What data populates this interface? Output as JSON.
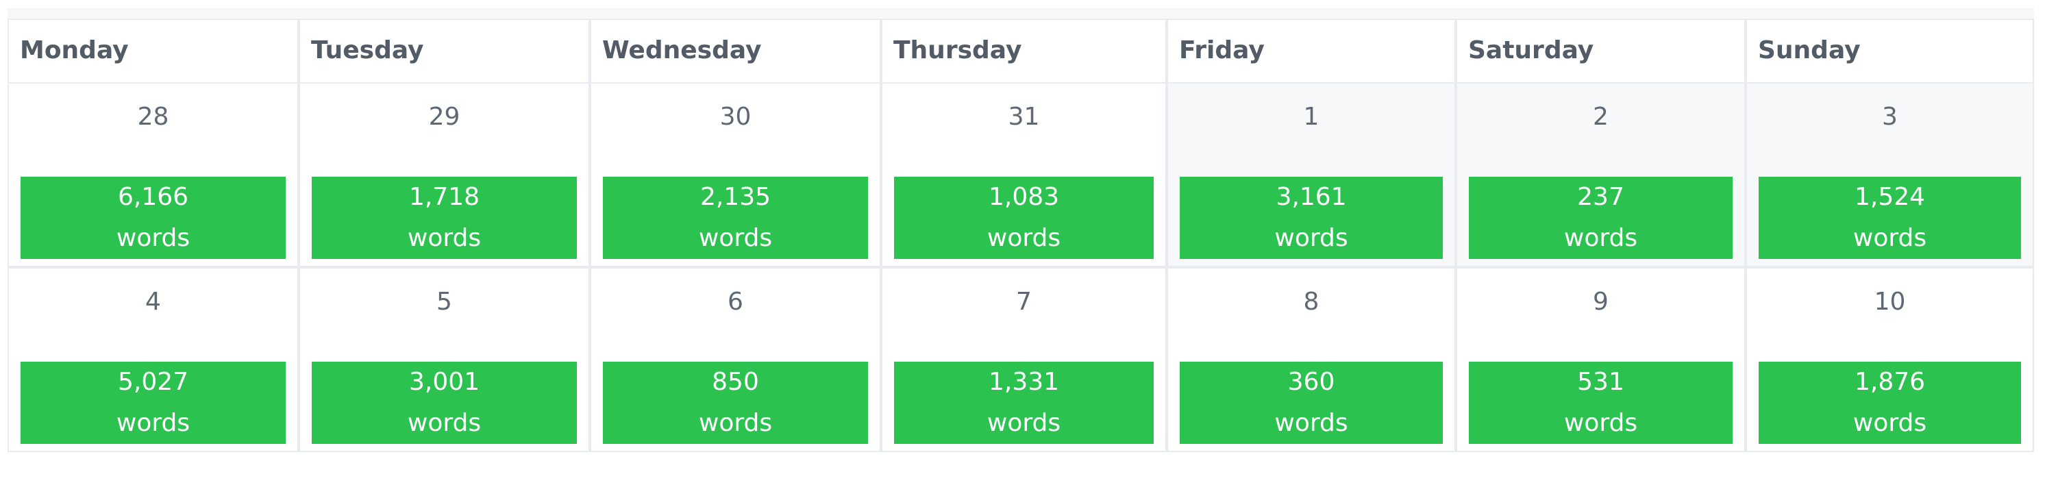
{
  "calendar": {
    "days": [
      "Monday",
      "Tuesday",
      "Wednesday",
      "Thursday",
      "Friday",
      "Saturday",
      "Sunday"
    ],
    "weeks": [
      [
        {
          "day": "28",
          "count": "6,166",
          "unit": "words"
        },
        {
          "day": "29",
          "count": "1,718",
          "unit": "words"
        },
        {
          "day": "30",
          "count": "2,135",
          "unit": "words"
        },
        {
          "day": "31",
          "count": "1,083",
          "unit": "words"
        },
        {
          "day": "1",
          "count": "3,161",
          "unit": "words"
        },
        {
          "day": "2",
          "count": "237",
          "unit": "words"
        },
        {
          "day": "3",
          "count": "1,524",
          "unit": "words"
        }
      ],
      [
        {
          "day": "4",
          "count": "5,027",
          "unit": "words"
        },
        {
          "day": "5",
          "count": "3,001",
          "unit": "words"
        },
        {
          "day": "6",
          "count": "850",
          "unit": "words"
        },
        {
          "day": "7",
          "count": "1,331",
          "unit": "words"
        },
        {
          "day": "8",
          "count": "360",
          "unit": "words"
        },
        {
          "day": "9",
          "count": "531",
          "unit": "words"
        },
        {
          "day": "10",
          "count": "1,876",
          "unit": "words"
        }
      ]
    ]
  }
}
